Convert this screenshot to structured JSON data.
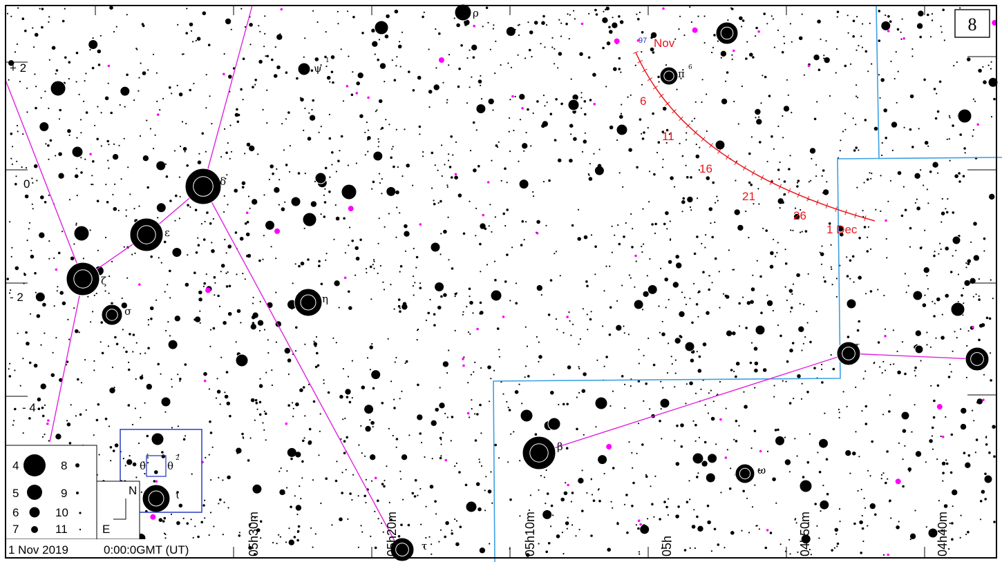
{
  "chart_number": "8",
  "footer": {
    "date": "1 Nov 2019",
    "time": "0:00:0GMT (UT)"
  },
  "orientation": {
    "north": "N",
    "east": "E"
  },
  "dec_labels": [
    "+ 2",
    "0",
    "- 2",
    "- 4"
  ],
  "ra_labels": [
    "05h30m",
    "05h20m",
    "05h10m",
    "05h",
    "04h50m",
    "04h40m"
  ],
  "magnitude_legend": [
    "4",
    "5",
    "6",
    "7",
    "8",
    "9",
    "10",
    "11"
  ],
  "star_labels": [
    "ρ",
    "ψ",
    "1",
    "π",
    "6",
    "δ",
    "ε",
    "ζ",
    "σ",
    "η",
    "θ",
    "1",
    "θ",
    "2",
    "ι",
    "τ",
    "β",
    "ω",
    "τ"
  ],
  "comet_track": {
    "start_label": "97",
    "month_start": "Nov",
    "day_labels": [
      "6",
      "11",
      "16",
      "21",
      "26"
    ],
    "end_label": "1 Dec"
  },
  "colors": {
    "stars": "#000000",
    "constellation_lines": "#e020e0",
    "boundaries": "#3c9fe0",
    "track": "#e8141a",
    "inset_box": "#1a2dbd",
    "deep_sky": "#ff00ff"
  }
}
